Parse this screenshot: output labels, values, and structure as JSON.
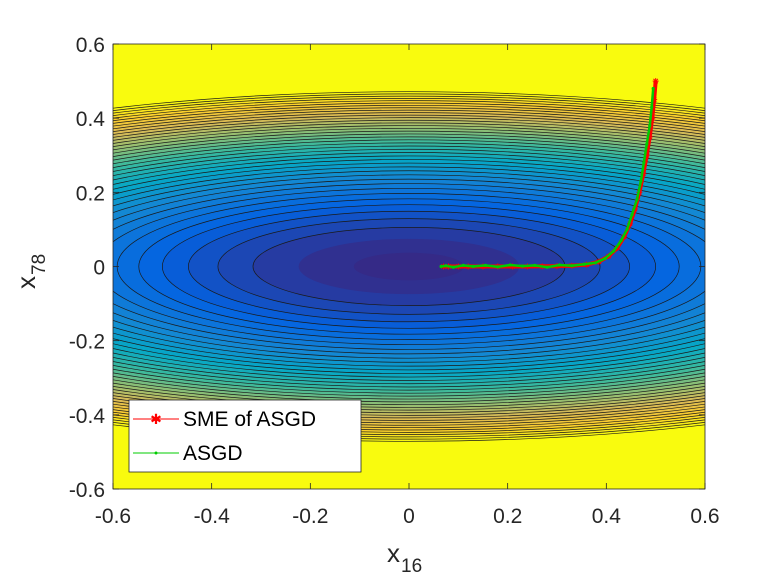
{
  "chart_data": {
    "type": "line",
    "subtype": "contour-with-trajectories",
    "xlabel": {
      "base": "x",
      "subscript": "16"
    },
    "ylabel": {
      "base": "x",
      "subscript": "78"
    },
    "xlim": [
      -0.6,
      0.6
    ],
    "ylim": [
      -0.6,
      0.6
    ],
    "xticks": [
      -0.6,
      -0.4,
      -0.2,
      0,
      0.2,
      0.4,
      0.6
    ],
    "yticks": [
      -0.6,
      -0.4,
      -0.2,
      0,
      0.2,
      0.4,
      0.6
    ],
    "xtick_labels": [
      "-0.6",
      "-0.4",
      "-0.2",
      "0",
      "0.2",
      "0.4",
      "0.6"
    ],
    "ytick_labels": [
      "-0.6",
      "-0.4",
      "-0.2",
      "0",
      "0.2",
      "0.4",
      "0.6"
    ],
    "contour": {
      "function": "f(x,y) = x^2 + 9*y^2",
      "level_values": [
        0.05,
        0.1,
        0.15,
        0.2,
        0.25,
        0.3,
        0.35,
        0.4,
        0.45,
        0.5,
        0.55,
        0.6,
        0.65,
        0.7,
        0.75,
        0.8,
        0.85,
        0.9,
        0.95,
        1.0,
        1.05,
        1.1,
        1.15,
        1.2,
        1.25,
        1.3,
        1.35,
        1.4,
        1.45,
        1.5,
        1.55,
        1.6,
        1.65,
        1.7,
        1.75,
        1.8,
        1.85,
        1.9,
        1.95,
        2.0
      ],
      "colormap": "parula",
      "colormap_stops": [
        "#352A87",
        "#0363E1",
        "#1485D4",
        "#06A7C6",
        "#38B99E",
        "#92BF73",
        "#D9BA56",
        "#FCCE2E",
        "#F9FB0E"
      ]
    },
    "series": [
      {
        "name": "SME of ASGD",
        "color": "#FF0000",
        "marker": "asterisk",
        "x": [
          0.5,
          0.497,
          0.493,
          0.488,
          0.482,
          0.475,
          0.467,
          0.458,
          0.448,
          0.436,
          0.422,
          0.405,
          0.385,
          0.36,
          0.33,
          0.3,
          0.27,
          0.24,
          0.21,
          0.18,
          0.15,
          0.12,
          0.1,
          0.08,
          0.07
        ],
        "y": [
          0.5,
          0.45,
          0.4,
          0.35,
          0.3,
          0.25,
          0.2,
          0.155,
          0.115,
          0.08,
          0.05,
          0.028,
          0.013,
          0.005,
          0.002,
          0.001,
          0.0005,
          0.0,
          0.0,
          0.0,
          0.0,
          0.0,
          0.0,
          0.0,
          0.0
        ]
      },
      {
        "name": "ASGD",
        "color": "#00CC00",
        "marker": "point",
        "x": [
          0.495,
          0.492,
          0.488,
          0.482,
          0.476,
          0.47,
          0.462,
          0.452,
          0.442,
          0.43,
          0.415,
          0.398,
          0.378,
          0.355,
          0.33,
          0.305,
          0.28,
          0.255,
          0.23,
          0.205,
          0.18,
          0.155,
          0.13,
          0.11,
          0.09,
          0.075,
          0.065
        ],
        "y": [
          0.48,
          0.43,
          0.38,
          0.33,
          0.28,
          0.23,
          0.18,
          0.14,
          0.1,
          0.07,
          0.042,
          0.022,
          0.01,
          0.006,
          0.002,
          0.004,
          -0.002,
          0.003,
          0.001,
          0.004,
          -0.001,
          0.003,
          0.0,
          0.003,
          -0.002,
          0.002,
          0.0
        ]
      }
    ],
    "legend": {
      "location": "bottom-left",
      "entries": [
        "SME of ASGD",
        "ASGD"
      ]
    }
  }
}
